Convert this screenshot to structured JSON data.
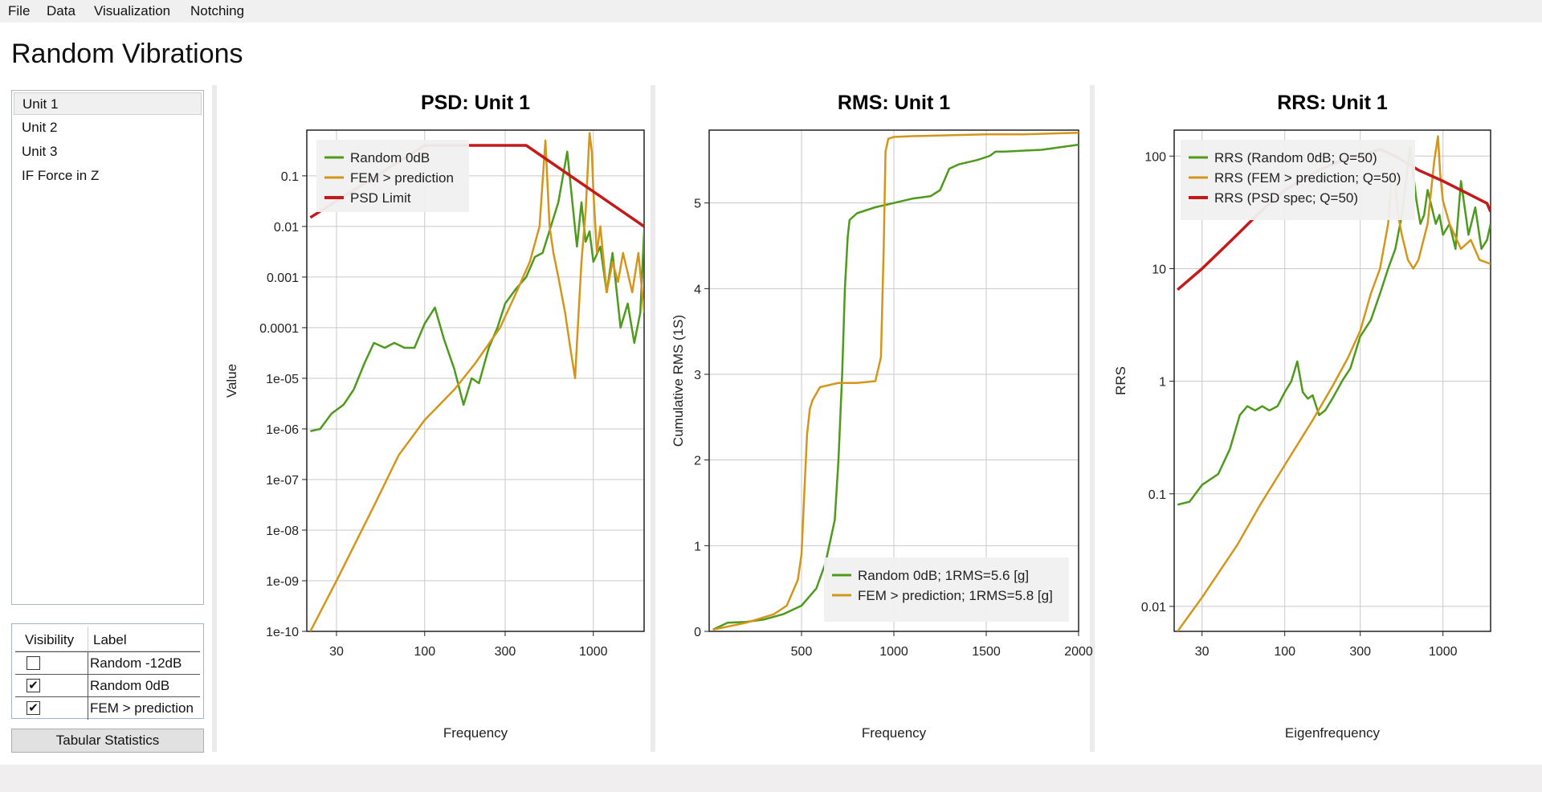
{
  "menu": [
    "File",
    "Data",
    "Visualization",
    "Notching"
  ],
  "app_title": "Random Vibrations",
  "units": {
    "items": [
      "Unit 1",
      "Unit 2",
      "Unit 3",
      "IF Force in Z"
    ],
    "selected": "Unit 1"
  },
  "visibility_table": {
    "headers": [
      "Visibility",
      "Label"
    ],
    "rows": [
      {
        "visible": false,
        "label": "Random -12dB"
      },
      {
        "visible": true,
        "label": "Random 0dB"
      },
      {
        "visible": true,
        "label": "FEM > prediction"
      }
    ]
  },
  "tabular_button": "Tabular Statistics",
  "colors": {
    "green": "#4e9a1c",
    "orange": "#d4961a",
    "red": "#c41a1a",
    "grid": "#c9c9c9"
  },
  "chart_data": [
    {
      "type": "line",
      "title": "PSD: Unit 1",
      "xlabel": "Frequency",
      "ylabel": "Value",
      "xscale": "log",
      "yscale": "log",
      "xlim": [
        20,
        2000
      ],
      "ylim": [
        1e-10,
        0.8
      ],
      "xticks": [
        30,
        100,
        300,
        1000
      ],
      "xtick_labels": [
        "30",
        "100",
        "300",
        "1000"
      ],
      "yticks": [
        1e-10,
        1e-09,
        1e-08,
        1e-07,
        1e-06,
        1e-05,
        0.0001,
        0.001,
        0.01,
        0.1
      ],
      "ytick_labels": [
        "1e-10",
        "1e-09",
        "1e-08",
        "1e-07",
        "1e-06",
        "1e-05",
        "0.0001",
        "0.001",
        "0.01",
        "0.1"
      ],
      "grid": true,
      "legend_position": "top-left",
      "series": [
        {
          "name": "Random 0dB",
          "color": "green",
          "x": [
            21,
            24,
            28,
            33,
            38,
            44,
            50,
            58,
            66,
            76,
            87,
            100,
            115,
            130,
            150,
            170,
            190,
            210,
            240,
            270,
            300,
            350,
            400,
            450,
            500,
            560,
            620,
            700,
            760,
            800,
            850,
            900,
            950,
            1000,
            1100,
            1200,
            1300,
            1450,
            1600,
            1750,
            1900,
            2000
          ],
          "values": [
            9e-07,
            1e-06,
            2e-06,
            3e-06,
            6e-06,
            2e-05,
            5e-05,
            4e-05,
            5e-05,
            4e-05,
            4e-05,
            0.00012,
            0.00025,
            6e-05,
            1.5e-05,
            3e-06,
            1e-05,
            8e-06,
            4e-05,
            0.0001,
            0.0003,
            0.0006,
            0.001,
            0.0025,
            0.003,
            0.01,
            0.03,
            0.3,
            0.02,
            0.004,
            0.03,
            0.005,
            0.008,
            0.002,
            0.004,
            0.0005,
            0.003,
            0.0001,
            0.0003,
            5e-05,
            0.0002,
            0.008
          ]
        },
        {
          "name": "FEM > prediction",
          "color": "orange",
          "x": [
            21,
            30,
            50,
            70,
            100,
            150,
            200,
            280,
            350,
            420,
            480,
            520,
            550,
            580,
            620,
            680,
            740,
            780,
            800,
            850,
            900,
            950,
            980,
            1000,
            1050,
            1100,
            1200,
            1300,
            1400,
            1500,
            1700,
            1850,
            2000
          ],
          "values": [
            1e-10,
            1e-09,
            3e-08,
            3e-07,
            1.5e-06,
            6e-06,
            2e-05,
            0.0001,
            0.0005,
            0.002,
            0.01,
            0.5,
            0.01,
            0.003,
            0.001,
            0.0002,
            3e-05,
            1e-05,
            5e-05,
            0.002,
            0.02,
            0.7,
            0.3,
            0.05,
            0.003,
            0.01,
            0.0005,
            0.002,
            0.0008,
            0.003,
            0.0005,
            0.003,
            0.0002
          ]
        },
        {
          "name": "PSD Limit",
          "color": "red",
          "x": [
            21,
            100,
            400,
            2000
          ],
          "values": [
            0.015,
            0.4,
            0.4,
            0.01
          ]
        }
      ]
    },
    {
      "type": "line",
      "title": "RMS: Unit 1",
      "xlabel": "Frequency",
      "ylabel": "Cumulative RMS (1S)",
      "xscale": "linear",
      "yscale": "linear",
      "xlim": [
        0,
        2000
      ],
      "ylim": [
        0,
        5.85
      ],
      "xticks": [
        500,
        1000,
        1500,
        2000
      ],
      "xtick_labels": [
        "500",
        "1000",
        "1500",
        "2000"
      ],
      "yticks": [
        0,
        1,
        2,
        3,
        4,
        5
      ],
      "ytick_labels": [
        "0",
        "1",
        "2",
        "3",
        "4",
        "5"
      ],
      "grid": true,
      "legend_position": "bottom-right",
      "series": [
        {
          "name": "Random 0dB; 1RMS=5.6 [g]",
          "color": "green",
          "x": [
            20,
            100,
            200,
            300,
            400,
            500,
            580,
            630,
            680,
            700,
            720,
            735,
            750,
            760,
            800,
            900,
            1000,
            1100,
            1200,
            1250,
            1280,
            1300,
            1350,
            1450,
            1520,
            1550,
            1600,
            1800,
            2000
          ],
          "values": [
            0.02,
            0.1,
            0.11,
            0.14,
            0.2,
            0.3,
            0.5,
            0.8,
            1.3,
            2.0,
            3.0,
            4.0,
            4.6,
            4.8,
            4.88,
            4.95,
            5.0,
            5.05,
            5.08,
            5.15,
            5.3,
            5.4,
            5.45,
            5.5,
            5.55,
            5.6,
            5.6,
            5.62,
            5.68
          ]
        },
        {
          "name": "FEM > prediction; 1RMS=5.8 [g]",
          "color": "orange",
          "x": [
            20,
            200,
            350,
            420,
            480,
            500,
            515,
            530,
            545,
            560,
            600,
            700,
            800,
            900,
            930,
            945,
            955,
            970,
            1000,
            1100,
            1300,
            1500,
            1700,
            2000
          ],
          "values": [
            0.02,
            0.1,
            0.2,
            0.3,
            0.6,
            0.9,
            1.6,
            2.3,
            2.6,
            2.7,
            2.85,
            2.9,
            2.9,
            2.92,
            3.2,
            4.5,
            5.6,
            5.75,
            5.77,
            5.78,
            5.79,
            5.8,
            5.8,
            5.82
          ]
        }
      ]
    },
    {
      "type": "line",
      "title": "RRS: Unit 1",
      "xlabel": "Eigenfrequency",
      "ylabel": "RRS",
      "xscale": "log",
      "yscale": "log",
      "xlim": [
        20,
        2000
      ],
      "ylim": [
        0.006,
        170
      ],
      "xticks": [
        30,
        100,
        300,
        1000
      ],
      "xtick_labels": [
        "30",
        "100",
        "300",
        "1000"
      ],
      "yticks": [
        0.01,
        0.1,
        1,
        10,
        100
      ],
      "ytick_labels": [
        "0.01",
        "0.1",
        "1",
        "10",
        "100"
      ],
      "grid": true,
      "legend_position": "top-left",
      "series": [
        {
          "name": "RRS (Random 0dB; Q=50)",
          "color": "green",
          "x": [
            21,
            25,
            30,
            38,
            45,
            52,
            58,
            65,
            72,
            80,
            90,
            100,
            110,
            120,
            130,
            140,
            150,
            165,
            180,
            200,
            230,
            260,
            300,
            350,
            400,
            450,
            500,
            550,
            620,
            680,
            720,
            760,
            800,
            850,
            900,
            950,
            1000,
            1100,
            1200,
            1300,
            1450,
            1600,
            1750,
            1900,
            2000
          ],
          "values": [
            0.08,
            0.085,
            0.12,
            0.15,
            0.25,
            0.5,
            0.6,
            0.55,
            0.6,
            0.55,
            0.6,
            0.8,
            1.0,
            1.5,
            0.8,
            0.7,
            0.75,
            0.5,
            0.55,
            0.7,
            1.0,
            1.3,
            2.5,
            3.5,
            6.0,
            10.0,
            15.0,
            30.0,
            120.0,
            40.0,
            25.0,
            30.0,
            50.0,
            35.0,
            25.0,
            30.0,
            20.0,
            25.0,
            15.0,
            60.0,
            20.0,
            35.0,
            15.0,
            18.0,
            25.0
          ]
        },
        {
          "name": "RRS (FEM > prediction; Q=50)",
          "color": "orange",
          "x": [
            21,
            30,
            50,
            70,
            100,
            150,
            200,
            250,
            300,
            350,
            400,
            450,
            480,
            500,
            520,
            550,
            600,
            650,
            700,
            800,
            880,
            930,
            960,
            1000,
            1100,
            1300,
            1500,
            1700,
            2000
          ],
          "values": [
            0.006,
            0.012,
            0.035,
            0.08,
            0.18,
            0.45,
            0.9,
            1.6,
            2.8,
            6.0,
            10.0,
            25.0,
            80.0,
            60.0,
            30.0,
            20.0,
            12.0,
            10.0,
            12.0,
            25.0,
            90.0,
            150.0,
            70.0,
            40.0,
            25.0,
            15.0,
            18.0,
            12.0,
            11.0
          ]
        },
        {
          "name": "RRS (PSD spec; Q=50)",
          "color": "red",
          "x": [
            21,
            30,
            50,
            70,
            100,
            150,
            200,
            250,
            300,
            350,
            400,
            500,
            700,
            1000,
            1500,
            1900,
            2000
          ],
          "values": [
            6.5,
            10.0,
            20.0,
            32.0,
            50.0,
            70.0,
            85.0,
            95.0,
            100.0,
            108.0,
            115.0,
            100.0,
            75.0,
            60.0,
            45.0,
            38.0,
            32.0
          ]
        }
      ]
    }
  ]
}
